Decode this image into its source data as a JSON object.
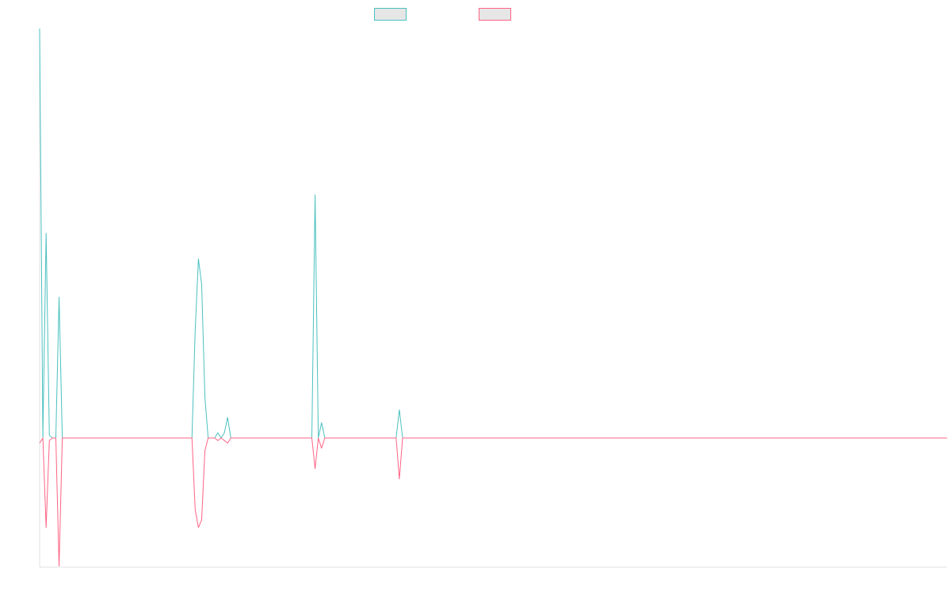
{
  "chart_data": {
    "type": "line",
    "title": "",
    "xlabel": "",
    "ylabel": "",
    "legend_position": "top-center",
    "grid": false,
    "x_range": [
      0,
      280
    ],
    "ylim": [
      -0.5,
      1.6
    ],
    "x": [
      0,
      1,
      2,
      3,
      4,
      5,
      6,
      7,
      8,
      46,
      47,
      48,
      49,
      50,
      51,
      52,
      53,
      54,
      55,
      56,
      57,
      58,
      59,
      65,
      66,
      73,
      74,
      83,
      84,
      85,
      86,
      87,
      88,
      110,
      111,
      112
    ],
    "series": [
      {
        "color": "#4bc0c0",
        "values": [
          1.6,
          0,
          0.8,
          0.01,
          0,
          0,
          0.55,
          0,
          0,
          0,
          0,
          0.42,
          0.7,
          0.6,
          0.16,
          0,
          0,
          0,
          0.02,
          0,
          0.02,
          0.08,
          0,
          0,
          0,
          0,
          0,
          0,
          0,
          0.95,
          0,
          0.06,
          0,
          0,
          0.11,
          0
        ]
      },
      {
        "color": "#ff6384",
        "values": [
          -0.02,
          0,
          -0.35,
          -0.01,
          0,
          0,
          -0.5,
          0,
          0,
          0,
          0,
          -0.28,
          -0.35,
          -0.32,
          -0.05,
          0,
          0,
          0,
          -0.01,
          0,
          -0.01,
          -0.02,
          0,
          0,
          0,
          0,
          0,
          0,
          0,
          -0.12,
          0,
          -0.04,
          0,
          0,
          -0.16,
          0
        ]
      }
    ]
  }
}
